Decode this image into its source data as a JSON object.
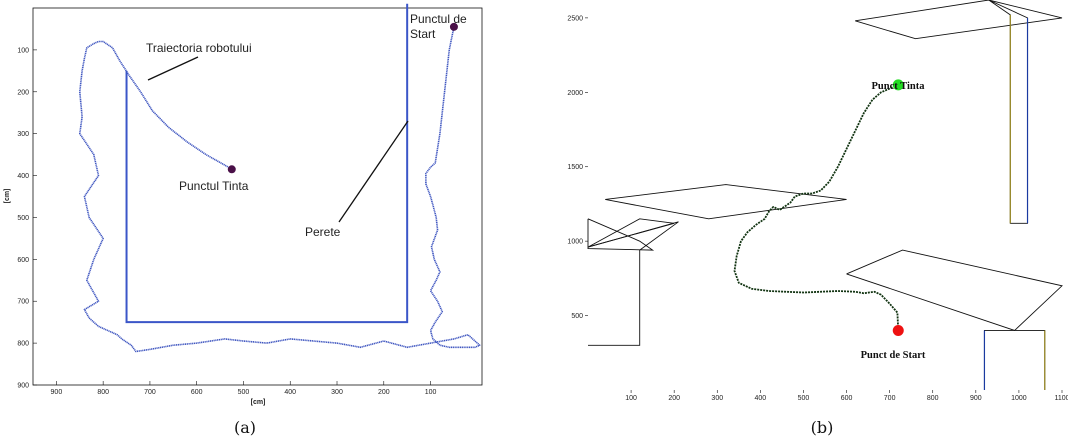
{
  "chart_data": [
    {
      "type": "line",
      "panel_caption": "(a)",
      "xlabel": "[cm]",
      "ylabel": "[cm]",
      "xlim": [
        950,
        -10
      ],
      "ylim": [
        900,
        0
      ],
      "x_ticks": [
        900,
        800,
        700,
        600,
        500,
        400,
        300,
        200,
        100
      ],
      "y_ticks": [
        100,
        200,
        300,
        400,
        500,
        600,
        700,
        800,
        900
      ],
      "annotations": {
        "trajectory": "Traiectoria robotului",
        "target": "Punctul Tinta",
        "start_line1": "Punctul de",
        "start_line2": "Start",
        "wall": "Perete"
      },
      "colors": {
        "path": "#3f56c0",
        "wall": "#3b56c8",
        "point": "#4a1048"
      },
      "start_point": [
        50,
        45
      ],
      "target_point": [
        525,
        385
      ],
      "walls": [
        {
          "x": [
            750,
            750,
            150,
            150
          ],
          "y": [
            150,
            750,
            750,
            -10
          ]
        }
      ],
      "series": [
        {
          "x": [
            50,
            60,
            70,
            80,
            90,
            100,
            110,
            110,
            100,
            95,
            88,
            85,
            98,
            92,
            80,
            88,
            100,
            85,
            75,
            90,
            100,
            95,
            80,
            60,
            40,
            20,
            5,
            -5,
            0,
            10,
            20,
            50,
            100,
            150,
            200,
            250,
            300,
            350,
            400,
            450,
            500,
            540,
            600,
            650,
            700,
            730,
            740,
            760,
            770,
            790,
            810,
            830,
            840,
            810,
            835,
            820,
            800,
            830,
            840,
            810,
            820,
            850,
            845,
            850,
            845,
            840,
            835,
            820,
            810,
            800,
            780,
            765,
            745,
            720,
            695,
            660,
            620,
            580,
            540,
            525
          ],
          "y": [
            45,
            100,
            200,
            300,
            370,
            380,
            395,
            420,
            450,
            470,
            500,
            530,
            570,
            600,
            630,
            650,
            675,
            700,
            725,
            750,
            770,
            790,
            805,
            810,
            810,
            810,
            810,
            805,
            800,
            790,
            780,
            790,
            800,
            810,
            795,
            810,
            800,
            795,
            790,
            800,
            795,
            790,
            800,
            805,
            815,
            820,
            805,
            790,
            780,
            770,
            760,
            740,
            720,
            700,
            650,
            600,
            550,
            500,
            450,
            400,
            350,
            300,
            260,
            200,
            150,
            120,
            95,
            85,
            80,
            80,
            95,
            125,
            160,
            200,
            245,
            285,
            320,
            350,
            375,
            385
          ]
        }
      ]
    },
    {
      "type": "line",
      "panel_caption": "(b)",
      "xlim": [
        0,
        1100
      ],
      "ylim": [
        0,
        2600
      ],
      "x_ticks": [
        100,
        200,
        300,
        400,
        500,
        600,
        700,
        800,
        900,
        1000,
        1100
      ],
      "y_ticks": [
        500,
        1000,
        1500,
        2000,
        2500
      ],
      "annotations": {
        "target": "Punct Tinta",
        "start": "Punct de Start"
      },
      "colors": {
        "target": "#22dd22",
        "start": "#ee1111",
        "walls": "#111111",
        "path": "#113311"
      },
      "target_point": [
        720,
        2050
      ],
      "start_point": [
        720,
        400
      ],
      "obstacles": [
        {
          "x": [
            0,
            0,
            150,
            120,
            0
          ],
          "y": [
            1150,
            950,
            940,
            1000,
            1150
          ]
        },
        {
          "x": [
            0,
            120,
            120,
            200,
            0
          ],
          "y": [
            960,
            1150,
            1150,
            1120,
            960
          ]
        },
        {
          "x": [
            0,
            120,
            120,
            210,
            0
          ],
          "y": [
            300,
            300,
            940,
            1130,
            960
          ]
        },
        {
          "x": [
            40,
            320,
            600,
            280,
            40
          ],
          "y": [
            1280,
            1380,
            1280,
            1150,
            1280
          ]
        },
        {
          "x": [
            620,
            930,
            1100,
            760,
            620
          ],
          "y": [
            2480,
            2620,
            2500,
            2360,
            2480
          ]
        },
        {
          "x": [
            930,
            980,
            980,
            1020,
            1020,
            930
          ],
          "y": [
            2620,
            2520,
            1120,
            1120,
            2500,
            2620
          ]
        },
        {
          "x": [
            600,
            730,
            1100,
            990,
            600
          ],
          "y": [
            780,
            940,
            700,
            400,
            780
          ]
        },
        {
          "x": [
            920,
            920,
            1060,
            1060
          ],
          "y": [
            0,
            400,
            400,
            0
          ]
        }
      ],
      "series": [
        {
          "x": [
            720,
            718,
            700,
            680,
            665,
            640,
            620,
            580,
            540,
            500,
            460,
            420,
            380,
            350,
            340,
            345,
            355,
            370,
            390,
            410,
            420,
            430,
            445,
            455,
            470,
            480,
            500,
            520,
            540,
            560,
            580,
            600,
            620,
            640,
            660,
            680,
            720
          ],
          "y": [
            400,
            520,
            580,
            640,
            660,
            650,
            660,
            665,
            660,
            655,
            660,
            665,
            680,
            720,
            800,
            900,
            1000,
            1060,
            1110,
            1150,
            1200,
            1230,
            1210,
            1230,
            1260,
            1300,
            1320,
            1320,
            1340,
            1400,
            1500,
            1620,
            1740,
            1860,
            1950,
            2000,
            2050
          ]
        }
      ]
    }
  ]
}
